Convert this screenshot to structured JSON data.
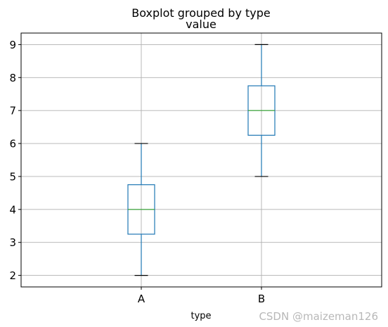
{
  "chart_data": {
    "type": "boxplot",
    "title": "Boxplot grouped by type",
    "subtitle": "value",
    "xlabel": "type",
    "ylabel": "",
    "ylim": [
      1.65,
      9.35
    ],
    "yticks": [
      2,
      3,
      4,
      5,
      6,
      7,
      8,
      9
    ],
    "grid": true,
    "categories": [
      "A",
      "B"
    ],
    "boxes": [
      {
        "category": "A",
        "whisker_low": 2,
        "q1": 3.25,
        "median": 4,
        "q3": 4.75,
        "whisker_high": 6
      },
      {
        "category": "B",
        "whisker_low": 5,
        "q1": 6.25,
        "median": 7,
        "q3": 7.75,
        "whisker_high": 9
      }
    ],
    "colors": {
      "box": "#1f77b4",
      "median": "#2ca02c",
      "cap": "#000000",
      "grid": "#b0b0b0"
    }
  },
  "watermark": "CSDN @maizeman126"
}
